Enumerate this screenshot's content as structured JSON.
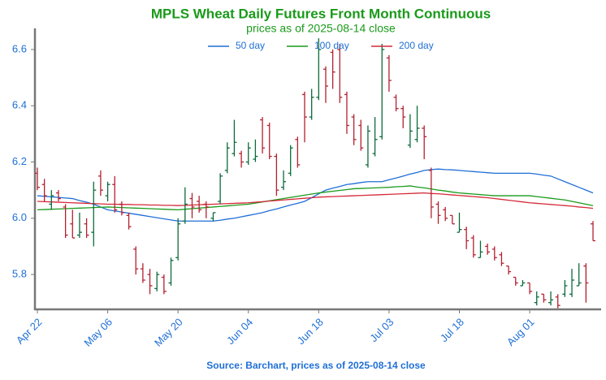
{
  "chart_data": {
    "type": "ohlc",
    "title": "MPLS Wheat Daily Futures Front Month Continuous",
    "subtitle": "prices as of 2025-08-14 close",
    "footer": "Source: Barchart, prices as of 2025-08-14 close",
    "categories": [
      "Apr 22",
      null,
      null,
      null,
      null,
      null,
      null,
      null,
      null,
      null,
      "May 06",
      null,
      null,
      null,
      null,
      null,
      null,
      null,
      null,
      null,
      "May 20",
      null,
      null,
      null,
      null,
      null,
      null,
      null,
      null,
      null,
      "Jun 04",
      null,
      null,
      null,
      null,
      null,
      null,
      null,
      null,
      null,
      "Jun 18",
      null,
      null,
      null,
      null,
      null,
      null,
      null,
      null,
      null,
      "Jul 03",
      null,
      null,
      null,
      null,
      null,
      null,
      null,
      null,
      null,
      "Jul 18",
      null,
      null,
      null,
      null,
      null,
      null,
      null,
      null,
      null,
      "Aug 01",
      null,
      null,
      null,
      null,
      null,
      null,
      null,
      null,
      null
    ],
    "open": [
      6.16,
      6.12,
      6.05,
      6.09,
      6.04,
      5.98,
      5.94,
      5.98,
      5.95,
      6.15,
      6.08,
      6.12,
      6.05,
      6.01,
      5.89,
      5.82,
      5.8,
      5.75,
      5.79,
      5.77,
      5.86,
      5.99,
      6.07,
      6.06,
      6.05,
      6.0,
      6.06,
      6.17,
      6.23,
      6.23,
      6.2,
      6.21,
      6.35,
      6.33,
      6.22,
      6.11,
      6.16,
      6.28,
      6.44,
      6.36,
      6.43,
      6.53,
      6.59,
      6.6,
      6.44,
      6.36,
      6.33,
      6.19,
      6.23,
      6.29,
      6.57,
      6.43,
      6.39,
      6.26,
      6.28,
      6.32,
      6.17,
      6.05,
      6.03,
      6.01,
      5.95,
      5.96,
      5.93,
      5.86,
      5.9,
      5.89,
      5.87,
      5.83,
      5.79,
      5.76,
      5.77,
      5.7,
      5.73,
      5.7,
      5.72,
      5.73,
      5.73,
      5.76,
      5.83,
      5.98
    ],
    "high": [
      6.18,
      6.14,
      6.1,
      6.1,
      6.05,
      6.03,
      6.02,
      6.0,
      6.13,
      6.17,
      6.13,
      6.15,
      6.06,
      6.02,
      5.9,
      5.84,
      5.82,
      5.81,
      5.8,
      5.86,
      6.0,
      6.11,
      6.09,
      6.08,
      6.06,
      6.02,
      6.16,
      6.27,
      6.35,
      6.24,
      6.27,
      6.28,
      6.36,
      6.34,
      6.23,
      6.17,
      6.26,
      6.29,
      6.45,
      6.46,
      6.64,
      6.54,
      6.6,
      6.62,
      6.45,
      6.37,
      6.35,
      6.33,
      6.36,
      6.62,
      6.58,
      6.44,
      6.4,
      6.37,
      6.4,
      6.33,
      6.18,
      6.06,
      6.04,
      6.01,
      6.02,
      5.97,
      5.94,
      5.92,
      5.91,
      5.9,
      5.88,
      5.83,
      5.79,
      5.78,
      5.77,
      5.74,
      5.73,
      5.74,
      5.73,
      5.78,
      5.82,
      5.84,
      5.84,
      5.99
    ],
    "low": [
      6.1,
      6.06,
      6.03,
      6.06,
      5.93,
      5.93,
      5.93,
      5.93,
      5.9,
      6.08,
      6.06,
      6.02,
      6.01,
      5.96,
      5.8,
      5.77,
      5.73,
      5.74,
      5.73,
      5.76,
      5.85,
      5.98,
      6.0,
      6.02,
      6.0,
      5.99,
      6.05,
      6.16,
      6.22,
      6.18,
      6.19,
      6.2,
      6.23,
      6.21,
      6.08,
      6.1,
      6.15,
      6.18,
      6.27,
      6.35,
      6.42,
      6.41,
      6.46,
      6.41,
      6.3,
      6.26,
      6.24,
      6.18,
      6.22,
      6.28,
      6.45,
      6.38,
      6.32,
      6.25,
      6.27,
      6.21,
      6.0,
      5.98,
      5.99,
      5.98,
      5.95,
      5.89,
      5.86,
      5.86,
      5.87,
      5.85,
      5.83,
      5.8,
      5.76,
      5.76,
      5.73,
      5.69,
      5.7,
      5.69,
      5.68,
      5.72,
      5.72,
      5.76,
      5.7,
      5.92
    ],
    "close": [
      6.11,
      6.08,
      6.08,
      6.07,
      5.94,
      5.93,
      5.95,
      5.94,
      6.1,
      6.1,
      6.12,
      6.03,
      6.02,
      5.97,
      5.82,
      5.78,
      5.76,
      5.8,
      5.74,
      5.85,
      5.98,
      6.05,
      6.04,
      6.03,
      6.04,
      6.02,
      6.15,
      6.25,
      6.27,
      6.2,
      6.25,
      6.22,
      6.25,
      6.22,
      6.1,
      6.13,
      6.25,
      6.19,
      6.36,
      6.43,
      6.6,
      6.47,
      6.52,
      6.43,
      6.33,
      6.28,
      6.25,
      6.31,
      6.28,
      6.6,
      6.49,
      6.39,
      6.36,
      6.31,
      6.32,
      6.29,
      6.04,
      6.01,
      6.0,
      5.98,
      5.96,
      5.92,
      5.87,
      5.88,
      5.88,
      5.86,
      5.84,
      5.81,
      5.77,
      5.77,
      5.74,
      5.72,
      5.71,
      5.71,
      5.69,
      5.76,
      5.78,
      5.77,
      5.77,
      5.92
    ],
    "up_color": "#0b6b3a",
    "down_color": "#b3202f",
    "series": [
      {
        "name": "50 day",
        "color": "#1f6fd6",
        "values": [
          6.08,
          6.078,
          6.076,
          6.074,
          6.072,
          6.07,
          6.063,
          6.057,
          6.05,
          6.04,
          6.03,
          6.026,
          6.022,
          6.018,
          6.014,
          6.01,
          6.006,
          6.002,
          5.998,
          5.994,
          5.99,
          5.99,
          5.99,
          5.99,
          5.99,
          5.99,
          5.993,
          5.997,
          6.0,
          6.005,
          6.01,
          6.015,
          6.02,
          6.027,
          6.033,
          6.04,
          6.047,
          6.053,
          6.06,
          6.073,
          6.087,
          6.1,
          6.107,
          6.113,
          6.12,
          6.123,
          6.127,
          6.13,
          6.13,
          6.13,
          6.137,
          6.143,
          6.15,
          6.157,
          6.163,
          6.17,
          6.173,
          6.175,
          6.173,
          6.172,
          6.17,
          6.168,
          6.166,
          6.164,
          6.162,
          6.16,
          6.16,
          6.16,
          6.16,
          6.16,
          6.16,
          6.157,
          6.153,
          6.15,
          6.14,
          6.13,
          6.12,
          6.11,
          6.1,
          6.09
        ]
      },
      {
        "name": "100 day",
        "color": "#1a9a1a",
        "values": [
          6.03,
          6.031,
          6.032,
          6.033,
          6.034,
          6.035,
          6.036,
          6.037,
          6.038,
          6.039,
          6.04,
          6.039,
          6.038,
          6.037,
          6.036,
          6.035,
          6.034,
          6.033,
          6.032,
          6.031,
          6.03,
          6.032,
          6.034,
          6.036,
          6.038,
          6.04,
          6.042,
          6.044,
          6.046,
          6.048,
          6.05,
          6.054,
          6.058,
          6.062,
          6.066,
          6.07,
          6.074,
          6.078,
          6.082,
          6.086,
          6.09,
          6.093,
          6.096,
          6.099,
          6.102,
          6.105,
          6.106,
          6.107,
          6.108,
          6.109,
          6.11,
          6.112,
          6.113,
          6.115,
          6.111,
          6.108,
          6.104,
          6.1,
          6.097,
          6.093,
          6.09,
          6.088,
          6.086,
          6.084,
          6.082,
          6.08,
          6.08,
          6.08,
          6.08,
          6.08,
          6.08,
          6.077,
          6.074,
          6.071,
          6.068,
          6.065,
          6.06,
          6.055,
          6.05,
          6.045
        ]
      },
      {
        "name": "200 day",
        "color": "#d42a3a",
        "values": [
          6.06,
          6.059,
          6.058,
          6.057,
          6.056,
          6.055,
          6.054,
          6.053,
          6.052,
          6.051,
          6.05,
          6.05,
          6.049,
          6.049,
          6.048,
          6.048,
          6.047,
          6.047,
          6.046,
          6.046,
          6.045,
          6.046,
          6.047,
          6.048,
          6.049,
          6.05,
          6.051,
          6.052,
          6.053,
          6.054,
          6.055,
          6.057,
          6.059,
          6.061,
          6.063,
          6.065,
          6.067,
          6.069,
          6.071,
          6.073,
          6.075,
          6.076,
          6.077,
          6.078,
          6.079,
          6.08,
          6.081,
          6.082,
          6.083,
          6.084,
          6.085,
          6.086,
          6.087,
          6.088,
          6.089,
          6.09,
          6.088,
          6.087,
          6.085,
          6.083,
          6.081,
          6.079,
          6.077,
          6.075,
          6.073,
          6.07,
          6.067,
          6.064,
          6.061,
          6.058,
          6.055,
          6.053,
          6.051,
          6.049,
          6.047,
          6.045,
          6.043,
          6.04,
          6.038,
          6.035
        ]
      }
    ],
    "ylim": [
      5.676,
      6.675
    ],
    "yticks": [
      5.8,
      {
        "value": 6,
        "label": "6.0"
      },
      6.2,
      6.4,
      6.6
    ],
    "grid": false,
    "legend": "upper center"
  }
}
